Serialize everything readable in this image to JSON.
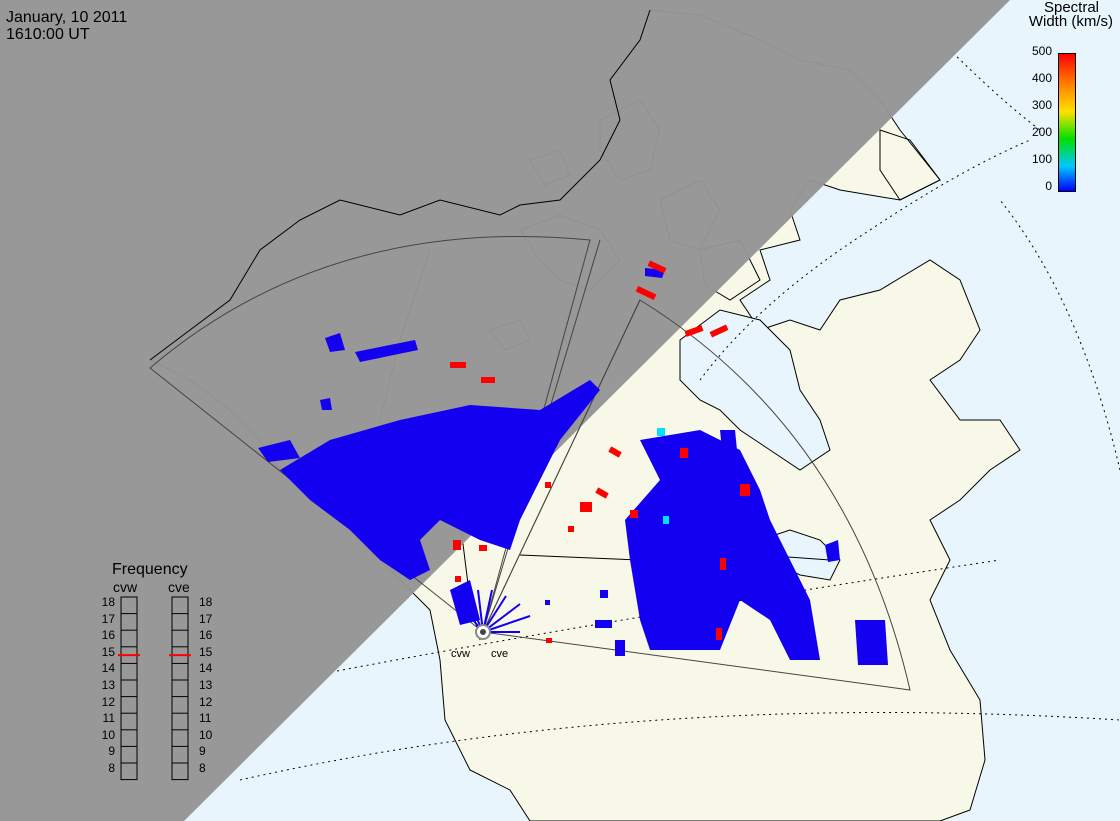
{
  "header": {
    "date": "January, 10 2011",
    "time": "1610:00 UT"
  },
  "colorbar": {
    "title_line1": "Spectral",
    "title_line2": "Width (km/s)",
    "ticks": [
      "500",
      "400",
      "300",
      "200",
      "100",
      "0"
    ],
    "colors": [
      "#0000ff",
      "#00c8ff",
      "#00e000",
      "#ffe000",
      "#ff8000",
      "#ff0000"
    ]
  },
  "frequency": {
    "title": "Frequency",
    "radars": [
      "cvw",
      "cve"
    ],
    "scale": [
      "18",
      "17",
      "16",
      "15",
      "14",
      "13",
      "12",
      "11",
      "10",
      "9",
      "8"
    ],
    "cvw_value_mhz": 15,
    "cve_value_mhz": 15
  },
  "sites": {
    "west_label": "cvw",
    "east_label": "cve"
  },
  "colors": {
    "night": "#959595",
    "land": "#f8f8e8",
    "ocean": "#e8f5fc",
    "echo_low": "#1400f0",
    "echo_high": "#ff0000",
    "echo_mid": "#00e0ff"
  }
}
